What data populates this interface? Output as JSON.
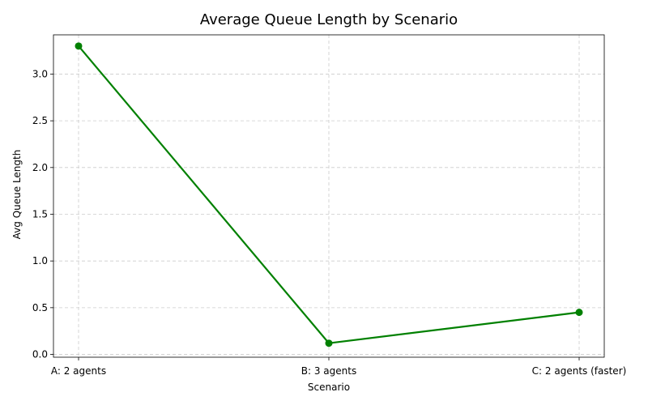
{
  "chart_data": {
    "type": "line",
    "title": "Average Queue Length by Scenario",
    "xlabel": "Scenario",
    "ylabel": "Avg Queue Length",
    "categories": [
      "A: 2 agents",
      "B: 3 agents",
      "C: 2 agents (faster)"
    ],
    "series": [
      {
        "values": [
          3.3,
          0.12,
          0.45
        ]
      }
    ],
    "ylim": [
      -0.03,
      3.42
    ],
    "yticks": [
      0.0,
      0.5,
      1.0,
      1.5,
      2.0,
      2.5,
      3.0
    ],
    "ytick_labels": [
      "0.0",
      "0.5",
      "1.0",
      "1.5",
      "2.0",
      "2.5",
      "3.0"
    ],
    "grid": true,
    "marker": "circle",
    "colors": {
      "line": "#008000",
      "grid": "#cccccc",
      "axis": "#000000"
    }
  }
}
